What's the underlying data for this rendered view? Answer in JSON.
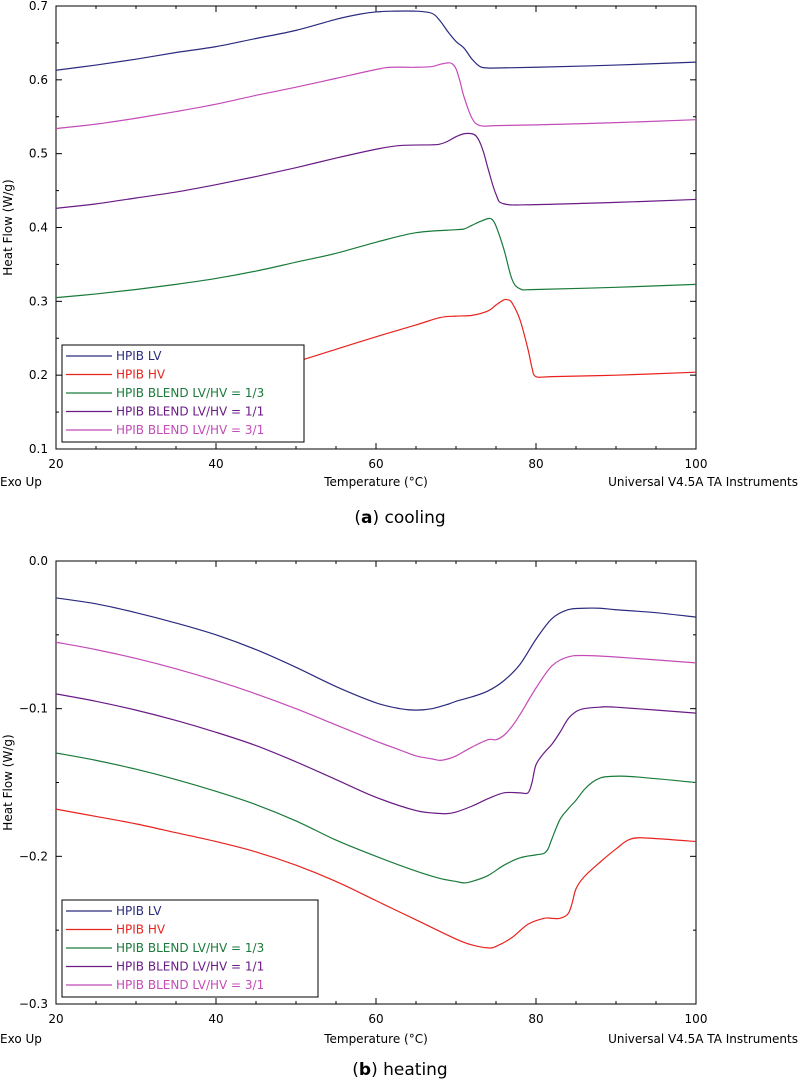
{
  "colors": {
    "lv": "#2b2b7f",
    "hv": "#e8231e",
    "b13": "#1a7a3a",
    "b11": "#6a1b86",
    "b31": "#c44bb8"
  },
  "chart_data": [
    {
      "id": "a",
      "type": "line",
      "caption_label": "a",
      "caption_text": " cooling",
      "xlabel": "Temperature (°C)",
      "ylabel": "Heat Flow (W/g)",
      "left_note": "Exo Up",
      "right_note": "Universal V4.5A TA Instruments",
      "xlim": [
        20,
        100
      ],
      "ylim": [
        0.1,
        0.7
      ],
      "xticks": [
        20,
        40,
        60,
        80,
        100
      ],
      "xtick_labels": [
        "20",
        "40",
        "60",
        "80",
        "100"
      ],
      "yticks": [
        0.1,
        0.2,
        0.3,
        0.4,
        0.5,
        0.6,
        0.7
      ],
      "ytick_labels": [
        "0.1",
        "0.2",
        "0.3",
        "0.4",
        "0.5",
        "0.6",
        "0.7"
      ],
      "legend": "bottom-left",
      "series": [
        {
          "name": "HPIB LV",
          "color": "lv",
          "x": [
            20,
            25,
            30,
            35,
            40,
            45,
            50,
            55,
            58,
            60,
            62,
            65,
            67,
            68,
            69,
            70,
            71,
            72,
            73,
            74,
            75,
            80,
            90,
            100
          ],
          "y": [
            0.613,
            0.62,
            0.628,
            0.637,
            0.645,
            0.656,
            0.667,
            0.682,
            0.689,
            0.692,
            0.693,
            0.693,
            0.69,
            0.68,
            0.665,
            0.652,
            0.643,
            0.628,
            0.618,
            0.616,
            0.616,
            0.617,
            0.62,
            0.624
          ]
        },
        {
          "name": "HPIB HV",
          "color": "hv",
          "x": [
            48,
            50,
            55,
            60,
            65,
            68,
            70,
            72,
            74,
            75,
            76,
            76.5,
            77,
            78,
            79,
            79.5,
            80,
            82,
            90,
            100
          ],
          "y": [
            0.21,
            0.218,
            0.235,
            0.252,
            0.268,
            0.278,
            0.28,
            0.281,
            0.287,
            0.295,
            0.302,
            0.302,
            0.298,
            0.275,
            0.235,
            0.21,
            0.198,
            0.198,
            0.2,
            0.204
          ]
        },
        {
          "name": "HPIB BLEND LV/HV = 1/3",
          "color": "b13",
          "x": [
            20,
            25,
            30,
            35,
            40,
            45,
            50,
            55,
            60,
            65,
            70,
            71,
            72,
            73,
            74,
            74.5,
            75,
            76,
            77,
            78,
            80,
            90,
            100
          ],
          "y": [
            0.305,
            0.31,
            0.316,
            0.323,
            0.331,
            0.341,
            0.353,
            0.365,
            0.38,
            0.393,
            0.397,
            0.398,
            0.403,
            0.408,
            0.412,
            0.411,
            0.402,
            0.37,
            0.33,
            0.317,
            0.316,
            0.319,
            0.323
          ]
        },
        {
          "name": "HPIB BLEND LV/HV = 1/1",
          "color": "b11",
          "x": [
            20,
            25,
            30,
            35,
            40,
            45,
            50,
            55,
            60,
            63,
            67,
            68,
            69,
            70,
            71,
            72,
            72.5,
            73,
            73.5,
            74,
            75,
            76,
            80,
            90,
            100
          ],
          "y": [
            0.426,
            0.432,
            0.44,
            0.448,
            0.458,
            0.469,
            0.481,
            0.494,
            0.506,
            0.511,
            0.512,
            0.513,
            0.517,
            0.523,
            0.527,
            0.527,
            0.524,
            0.515,
            0.5,
            0.48,
            0.445,
            0.432,
            0.431,
            0.434,
            0.438
          ]
        },
        {
          "name": "HPIB BLEND LV/HV = 3/1",
          "color": "b31",
          "x": [
            20,
            25,
            30,
            35,
            40,
            45,
            50,
            55,
            60,
            62,
            65,
            67,
            68,
            69,
            69.5,
            70,
            70.5,
            71,
            72,
            73,
            75,
            80,
            90,
            100
          ],
          "y": [
            0.534,
            0.54,
            0.548,
            0.557,
            0.567,
            0.579,
            0.59,
            0.602,
            0.614,
            0.617,
            0.617,
            0.618,
            0.621,
            0.623,
            0.622,
            0.615,
            0.598,
            0.577,
            0.548,
            0.538,
            0.538,
            0.539,
            0.542,
            0.546
          ]
        }
      ]
    },
    {
      "id": "b",
      "type": "line",
      "caption_label": "b",
      "caption_text": " heating",
      "xlabel": "Temperature (°C)",
      "ylabel": "Heat Flow (W/g)",
      "left_note": "Exo Up",
      "right_note": "Universal V4.5A TA Instruments",
      "xlim": [
        20,
        100
      ],
      "ylim": [
        -0.3,
        0.0
      ],
      "xticks": [
        20,
        40,
        60,
        80,
        100
      ],
      "xtick_labels": [
        "20",
        "40",
        "60",
        "80",
        "100"
      ],
      "yticks": [
        -0.3,
        -0.2,
        -0.1,
        0.0
      ],
      "ytick_labels": [
        "−0.3",
        "−0.2",
        "−0.1",
        "0.0"
      ],
      "legend": "bottom-left",
      "series": [
        {
          "name": "HPIB LV",
          "color": "lv",
          "x": [
            20,
            25,
            30,
            35,
            40,
            45,
            50,
            55,
            60,
            63,
            65,
            67,
            69,
            70,
            72,
            74,
            76,
            78,
            80,
            82,
            84,
            86,
            88,
            90,
            95,
            100
          ],
          "y": [
            -0.025,
            -0.029,
            -0.035,
            -0.042,
            -0.05,
            -0.06,
            -0.072,
            -0.085,
            -0.096,
            -0.1,
            -0.101,
            -0.1,
            -0.097,
            -0.095,
            -0.092,
            -0.088,
            -0.081,
            -0.07,
            -0.053,
            -0.039,
            -0.033,
            -0.032,
            -0.032,
            -0.033,
            -0.035,
            -0.038
          ]
        },
        {
          "name": "HPIB HV",
          "color": "hv",
          "x": [
            20,
            25,
            30,
            35,
            40,
            45,
            50,
            55,
            60,
            65,
            70,
            72,
            74,
            75,
            77,
            79,
            81,
            82,
            83,
            84,
            84.5,
            85,
            86,
            88,
            90,
            92,
            95,
            100
          ],
          "y": [
            -0.168,
            -0.173,
            -0.178,
            -0.184,
            -0.19,
            -0.197,
            -0.206,
            -0.217,
            -0.23,
            -0.243,
            -0.256,
            -0.26,
            -0.262,
            -0.261,
            -0.255,
            -0.246,
            -0.242,
            -0.242,
            -0.242,
            -0.239,
            -0.232,
            -0.222,
            -0.214,
            -0.204,
            -0.195,
            -0.188,
            -0.188,
            -0.19
          ]
        },
        {
          "name": "HPIB BLEND LV/HV = 1/3",
          "color": "b13",
          "x": [
            20,
            25,
            30,
            35,
            40,
            45,
            50,
            55,
            60,
            65,
            68,
            70,
            71,
            72,
            74,
            76,
            78,
            80,
            81,
            81.5,
            82,
            83,
            84,
            85,
            86,
            87,
            88,
            89,
            92,
            100
          ],
          "y": [
            -0.13,
            -0.135,
            -0.141,
            -0.148,
            -0.156,
            -0.165,
            -0.176,
            -0.189,
            -0.2,
            -0.21,
            -0.215,
            -0.217,
            -0.218,
            -0.217,
            -0.213,
            -0.206,
            -0.201,
            -0.199,
            -0.198,
            -0.195,
            -0.188,
            -0.175,
            -0.168,
            -0.162,
            -0.155,
            -0.15,
            -0.147,
            -0.146,
            -0.146,
            -0.15
          ]
        },
        {
          "name": "HPIB BLEND LV/HV = 1/1",
          "color": "b11",
          "x": [
            20,
            25,
            30,
            35,
            40,
            45,
            50,
            55,
            60,
            65,
            68,
            69,
            70,
            72,
            74,
            76,
            78,
            79,
            79.5,
            80,
            81,
            82,
            83,
            84,
            85,
            86,
            88,
            90,
            100
          ],
          "y": [
            -0.09,
            -0.095,
            -0.101,
            -0.108,
            -0.116,
            -0.125,
            -0.136,
            -0.148,
            -0.16,
            -0.169,
            -0.171,
            -0.171,
            -0.17,
            -0.166,
            -0.161,
            -0.157,
            -0.157,
            -0.157,
            -0.15,
            -0.138,
            -0.13,
            -0.124,
            -0.116,
            -0.107,
            -0.102,
            -0.1,
            -0.099,
            -0.099,
            -0.103
          ]
        },
        {
          "name": "HPIB BLEND LV/HV = 3/1",
          "color": "b31",
          "x": [
            20,
            25,
            30,
            35,
            40,
            45,
            50,
            55,
            60,
            63,
            65,
            67,
            68,
            69,
            70,
            72,
            74,
            75,
            76,
            77,
            78,
            80,
            82,
            84,
            86,
            90,
            100
          ],
          "y": [
            -0.055,
            -0.06,
            -0.066,
            -0.073,
            -0.081,
            -0.09,
            -0.1,
            -0.111,
            -0.122,
            -0.128,
            -0.132,
            -0.134,
            -0.135,
            -0.134,
            -0.132,
            -0.126,
            -0.121,
            -0.121,
            -0.118,
            -0.112,
            -0.104,
            -0.086,
            -0.071,
            -0.065,
            -0.064,
            -0.065,
            -0.069
          ]
        }
      ]
    }
  ]
}
